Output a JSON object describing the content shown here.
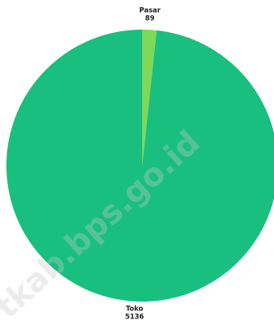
{
  "chart_data": {
    "type": "pie",
    "slices": [
      {
        "label": "Pasar",
        "value": 89,
        "color": "#7ed957"
      },
      {
        "label": "Toko",
        "value": 5136,
        "color": "#19bf7f"
      }
    ]
  },
  "watermark": "tkab.bps.go.id"
}
